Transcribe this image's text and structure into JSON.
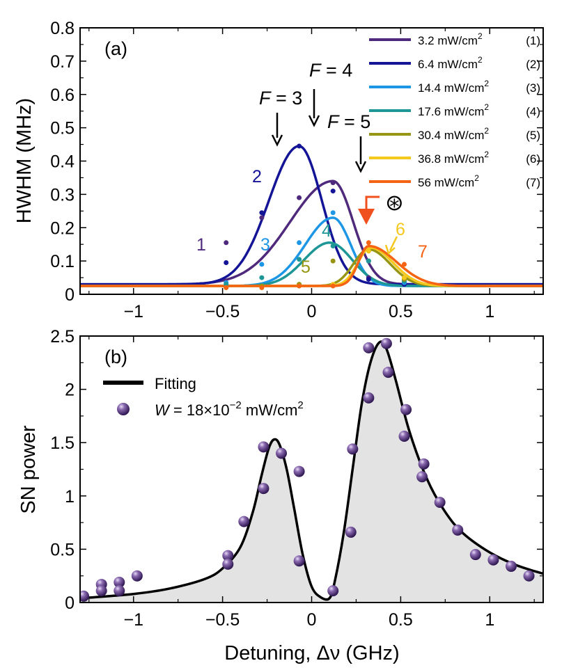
{
  "chart_data": [
    {
      "panel": "(a)",
      "type": "line",
      "xlabel": "",
      "ylabel": "HWHM (MHz)",
      "xlim": [
        -1.3,
        1.3
      ],
      "ylim": [
        0,
        0.8
      ],
      "xticks": [
        {
          "v": -1,
          "label": "−1"
        },
        {
          "v": -0.5,
          "label": "−0.5"
        },
        {
          "v": 0,
          "label": "0"
        },
        {
          "v": 0.5,
          "label": "0.5"
        },
        {
          "v": 1,
          "label": "1"
        }
      ],
      "yticks": [
        {
          "v": 0,
          "label": "0"
        },
        {
          "v": 0.1,
          "label": "0.1"
        },
        {
          "v": 0.2,
          "label": "0.2"
        },
        {
          "v": 0.3,
          "label": "0.3"
        },
        {
          "v": 0.4,
          "label": "0.4"
        },
        {
          "v": 0.5,
          "label": "0.5"
        },
        {
          "v": 0.6,
          "label": "0.6"
        },
        {
          "v": 0.7,
          "label": "0.7"
        },
        {
          "v": 0.8,
          "label": "0.8"
        }
      ],
      "series": [
        {
          "id": 1,
          "legend": "3.2 mW/cm",
          "sup": "2",
          "tag": "(1)",
          "label": "1",
          "color": "#4f2a7c",
          "base": 0.03,
          "amp": 0.31,
          "center": 0.12,
          "wl": 0.34,
          "wr": 0.16,
          "points": [
            [
              -0.48,
              0.155
            ],
            [
              -0.28,
              0.23
            ],
            [
              -0.07,
              0.29
            ],
            [
              0.12,
              0.335
            ],
            [
              0.32,
              0.05
            ],
            [
              0.52,
              0.035
            ]
          ]
        },
        {
          "id": 2,
          "legend": "6.4 mW/cm",
          "sup": "2",
          "tag": "(2)",
          "label": "2",
          "color": "#141496",
          "base": 0.03,
          "amp": 0.415,
          "center": -0.07,
          "wl": 0.24,
          "wr": 0.18,
          "points": [
            [
              -0.48,
              0.095
            ],
            [
              -0.28,
              0.245
            ],
            [
              -0.07,
              0.445
            ],
            [
              0.12,
              0.31
            ],
            [
              0.32,
              0.045
            ],
            [
              0.52,
              0.03
            ]
          ]
        },
        {
          "id": 3,
          "legend": "14.4 mW/cm",
          "sup": "2",
          "tag": "(3)",
          "label": "3",
          "color": "#1e96e6",
          "base": 0.025,
          "amp": 0.205,
          "center": 0.12,
          "wl": 0.22,
          "wr": 0.14,
          "points": [
            [
              -0.48,
              0.035
            ],
            [
              -0.28,
              0.09
            ],
            [
              -0.07,
              0.155
            ],
            [
              0.12,
              0.245
            ],
            [
              0.32,
              0.1
            ],
            [
              0.52,
              0.035
            ]
          ]
        },
        {
          "id": 4,
          "legend": "17.6 mW/cm",
          "sup": "2",
          "tag": "(4)",
          "label": "4",
          "color": "#1e9696",
          "base": 0.025,
          "amp": 0.13,
          "center": 0.1,
          "wl": 0.2,
          "wr": 0.18,
          "points": [
            [
              -0.48,
              0.03
            ],
            [
              -0.28,
              0.05
            ],
            [
              -0.07,
              0.105
            ],
            [
              0.12,
              0.145
            ],
            [
              0.32,
              0.1
            ],
            [
              0.52,
              0.04
            ]
          ]
        },
        {
          "id": 5,
          "legend": "30.4 mW/cm",
          "sup": "2",
          "tag": "(5)",
          "label": "5",
          "color": "#969614",
          "base": 0.025,
          "amp": 0.11,
          "center": 0.32,
          "wl": 0.12,
          "wr": 0.17,
          "points": [
            [
              -0.48,
              0.02
            ],
            [
              -0.28,
              0.025
            ],
            [
              -0.07,
              0.03
            ],
            [
              0.12,
              0.1
            ],
            [
              0.32,
              0.13
            ],
            [
              0.52,
              0.045
            ]
          ]
        },
        {
          "id": 6,
          "legend": "36.8 mW/cm",
          "sup": "2",
          "tag": "(6)",
          "label": "6",
          "color": "#f5c81e",
          "base": 0.025,
          "amp": 0.115,
          "center": 0.33,
          "wl": 0.1,
          "wr": 0.18,
          "points": [
            [
              -0.48,
              0.02
            ],
            [
              -0.28,
              0.02
            ],
            [
              -0.07,
              0.025
            ],
            [
              0.12,
              0.03
            ],
            [
              0.32,
              0.13
            ],
            [
              0.52,
              0.05
            ]
          ]
        },
        {
          "id": 7,
          "legend": "56 mW/cm",
          "sup": "2",
          "tag": "(7)",
          "label": "7",
          "color": "#f56414",
          "base": 0.025,
          "amp": 0.12,
          "center": 0.32,
          "wl": 0.08,
          "wr": 0.22,
          "points": [
            [
              -0.48,
              0.02
            ],
            [
              -0.28,
              0.02
            ],
            [
              -0.07,
              0.025
            ],
            [
              0.12,
              0.025
            ],
            [
              0.32,
              0.155
            ],
            [
              0.52,
              0.09
            ]
          ]
        }
      ],
      "annotations": [
        {
          "prefix": "F",
          "text": " = 3",
          "x": -0.2
        },
        {
          "prefix": "F",
          "text": " = 4",
          "x": 0.0
        },
        {
          "prefix": "F",
          "text": " = 5",
          "x": 0.26
        }
      ],
      "symbol": "⊛"
    },
    {
      "panel": "(b)",
      "type": "line+scatter",
      "xlabel": "Detuning, Δν (GHz)",
      "ylabel": "SN power",
      "xlim": [
        -1.3,
        1.3
      ],
      "ylim": [
        0,
        2.5
      ],
      "xticks": [
        {
          "v": -1,
          "label": "−1"
        },
        {
          "v": -0.5,
          "label": "−0.5"
        },
        {
          "v": 0,
          "label": "0"
        },
        {
          "v": 0.5,
          "label": "0.5"
        },
        {
          "v": 1,
          "label": "1"
        }
      ],
      "yticks": [
        {
          "v": 0,
          "label": "0"
        },
        {
          "v": 0.5,
          "label": "0.5"
        },
        {
          "v": 1,
          "label": "1"
        },
        {
          "v": 1.5,
          "label": "1.5"
        },
        {
          "v": 2,
          "label": "2"
        },
        {
          "v": 2.5,
          "label": "2.5"
        }
      ],
      "legend": {
        "fit": "Fitting",
        "points_prefix": "W",
        "points_text": " = 18×10",
        "points_sup": "−2",
        "points_suffix": " mW/cm",
        "points_sup2": "2"
      },
      "fit_curve": [
        [
          -1.3,
          0.04
        ],
        [
          -1.0,
          0.08
        ],
        [
          -0.8,
          0.13
        ],
        [
          -0.6,
          0.22
        ],
        [
          -0.5,
          0.32
        ],
        [
          -0.4,
          0.52
        ],
        [
          -0.33,
          0.85
        ],
        [
          -0.28,
          1.2
        ],
        [
          -0.24,
          1.45
        ],
        [
          -0.21,
          1.53
        ],
        [
          -0.18,
          1.48
        ],
        [
          -0.14,
          1.25
        ],
        [
          -0.1,
          0.9
        ],
        [
          -0.05,
          0.45
        ],
        [
          0.0,
          0.15
        ],
        [
          0.05,
          0.05
        ],
        [
          0.1,
          0.04
        ],
        [
          0.13,
          0.2
        ],
        [
          0.18,
          0.65
        ],
        [
          0.23,
          1.25
        ],
        [
          0.28,
          1.85
        ],
        [
          0.33,
          2.25
        ],
        [
          0.38,
          2.44
        ],
        [
          0.42,
          2.38
        ],
        [
          0.47,
          2.1
        ],
        [
          0.55,
          1.6
        ],
        [
          0.65,
          1.15
        ],
        [
          0.75,
          0.85
        ],
        [
          0.85,
          0.65
        ],
        [
          1.0,
          0.47
        ],
        [
          1.15,
          0.35
        ],
        [
          1.3,
          0.27
        ]
      ],
      "points": [
        [
          -1.28,
          0.06
        ],
        [
          -1.18,
          0.17
        ],
        [
          -1.18,
          0.11
        ],
        [
          -1.08,
          0.19
        ],
        [
          -1.08,
          0.11
        ],
        [
          -0.98,
          0.25
        ],
        [
          -0.47,
          0.44
        ],
        [
          -0.47,
          0.36
        ],
        [
          -0.38,
          0.76
        ],
        [
          -0.27,
          1.46
        ],
        [
          -0.27,
          1.07
        ],
        [
          -0.17,
          1.4
        ],
        [
          -0.07,
          1.23
        ],
        [
          -0.07,
          0.39
        ],
        [
          0.12,
          0.11
        ],
        [
          0.22,
          0.66
        ],
        [
          0.23,
          1.44
        ],
        [
          0.32,
          2.39
        ],
        [
          0.32,
          1.92
        ],
        [
          0.42,
          2.43
        ],
        [
          0.43,
          2.16
        ],
        [
          0.53,
          1.81
        ],
        [
          0.52,
          1.56
        ],
        [
          0.63,
          1.3
        ],
        [
          0.62,
          1.18
        ],
        [
          0.72,
          0.94
        ],
        [
          0.82,
          0.68
        ],
        [
          0.92,
          0.45
        ],
        [
          1.02,
          0.4
        ],
        [
          1.12,
          0.34
        ],
        [
          1.22,
          0.25
        ]
      ],
      "marker_color": "#5a3a82"
    }
  ]
}
